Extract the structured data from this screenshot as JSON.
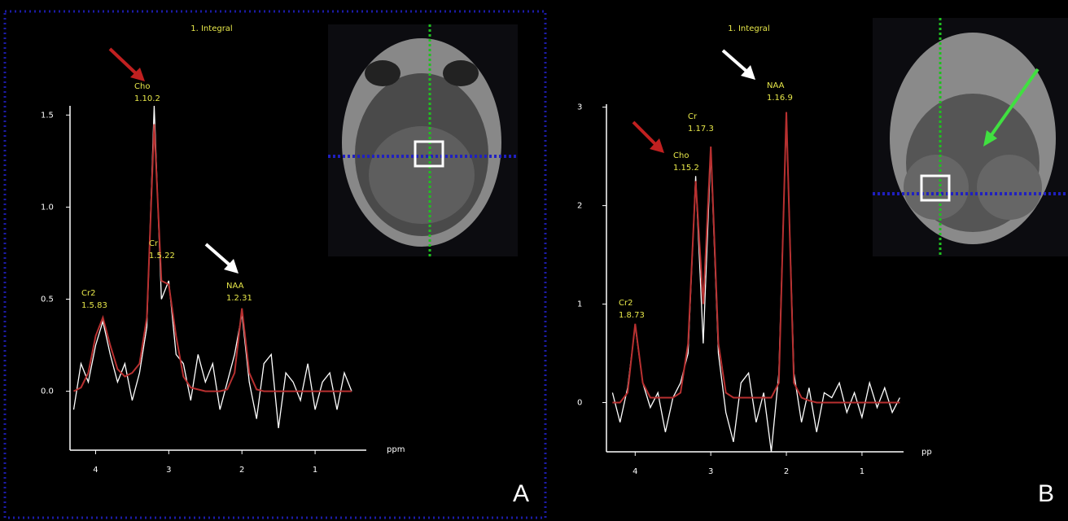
{
  "chart_data": [
    {
      "type": "line",
      "title": "1. Integral",
      "panel_label": "A",
      "x_label": "ppm",
      "x": [
        4.3,
        4.2,
        4.1,
        4.0,
        3.9,
        3.8,
        3.7,
        3.6,
        3.5,
        3.4,
        3.3,
        3.2,
        3.1,
        3.0,
        2.9,
        2.8,
        2.7,
        2.6,
        2.5,
        2.4,
        2.3,
        2.2,
        2.1,
        2.0,
        1.9,
        1.8,
        1.7,
        1.6,
        1.5,
        1.4,
        1.3,
        1.2,
        1.1,
        1.0,
        0.9,
        0.8,
        0.7,
        0.6,
        0.5
      ],
      "series": [
        {
          "color": "#ffffff",
          "values": [
            -0.1,
            0.15,
            0.05,
            0.25,
            0.38,
            0.2,
            0.05,
            0.15,
            -0.05,
            0.1,
            0.35,
            1.55,
            0.5,
            0.6,
            0.2,
            0.15,
            -0.05,
            0.2,
            0.05,
            0.15,
            -0.1,
            0.05,
            0.2,
            0.42,
            0.05,
            -0.15,
            0.15,
            0.2,
            -0.2,
            0.1,
            0.05,
            -0.05,
            0.15,
            -0.1,
            0.05,
            0.1,
            -0.1,
            0.1,
            0.0
          ]
        },
        {
          "color": "#b83030",
          "values": [
            0.0,
            0.02,
            0.1,
            0.3,
            0.4,
            0.25,
            0.12,
            0.08,
            0.1,
            0.15,
            0.4,
            1.45,
            0.6,
            0.58,
            0.3,
            0.08,
            0.02,
            0.01,
            0,
            0,
            0,
            0.01,
            0.1,
            0.45,
            0.1,
            0.01,
            0,
            0,
            0,
            0,
            0,
            0,
            0,
            0,
            0,
            0,
            0,
            0,
            0
          ]
        }
      ],
      "xlim": [
        4.35,
        0.3
      ],
      "xticks": [
        4,
        3,
        2,
        1
      ],
      "ylim": [
        -0.32,
        1.55
      ],
      "yticks": [
        {
          "value": 0,
          "label": "0.0"
        },
        0.5,
        {
          "value": 1,
          "label": "1.0"
        },
        1.5
      ],
      "annotations": [
        {
          "name": "Cr2",
          "value": "1.5.83"
        },
        {
          "name": "Cho",
          "value": "1.10.2"
        },
        {
          "name": "Cr",
          "value": "1.5.22"
        },
        {
          "name": "NAA",
          "value": "1.2.31"
        }
      ]
    },
    {
      "type": "line",
      "title": "1. Integral",
      "panel_label": "B",
      "x_label": "pp",
      "x": [
        4.3,
        4.2,
        4.1,
        4.0,
        3.9,
        3.8,
        3.7,
        3.6,
        3.5,
        3.4,
        3.3,
        3.2,
        3.1,
        3.0,
        2.9,
        2.8,
        2.7,
        2.6,
        2.5,
        2.4,
        2.3,
        2.2,
        2.1,
        2.0,
        1.9,
        1.8,
        1.7,
        1.6,
        1.5,
        1.4,
        1.3,
        1.2,
        1.1,
        1.0,
        0.9,
        0.8,
        0.7,
        0.6,
        0.5
      ],
      "series": [
        {
          "color": "#ffffff",
          "values": [
            0.1,
            -0.2,
            0.15,
            0.78,
            0.2,
            -0.05,
            0.1,
            -0.3,
            0.05,
            0.2,
            0.5,
            2.3,
            0.6,
            2.55,
            0.5,
            -0.1,
            -0.4,
            0.2,
            0.3,
            -0.2,
            0.1,
            -0.5,
            0.3,
            2.9,
            0.3,
            -0.2,
            0.15,
            -0.3,
            0.1,
            0.05,
            0.2,
            -0.1,
            0.1,
            -0.15,
            0.2,
            -0.05,
            0.15,
            -0.1,
            0.05
          ]
        },
        {
          "color": "#b83030",
          "values": [
            0.0,
            0.0,
            0.1,
            0.8,
            0.2,
            0.05,
            0.05,
            0.05,
            0.05,
            0.1,
            0.6,
            2.25,
            1.0,
            2.6,
            0.6,
            0.1,
            0.05,
            0.05,
            0.05,
            0.05,
            0.05,
            0.05,
            0.2,
            2.95,
            0.2,
            0.05,
            0.02,
            0,
            0,
            0,
            0,
            0,
            0,
            0,
            0,
            0,
            0,
            0,
            0
          ]
        }
      ],
      "xlim": [
        4.38,
        0.45
      ],
      "xticks": [
        4,
        3,
        2,
        1
      ],
      "ylim": [
        -0.5,
        3.03
      ],
      "yticks": [
        0,
        1,
        2,
        3
      ],
      "annotations": [
        {
          "name": "Cr2",
          "value": "1.8.73"
        },
        {
          "name": "Cho",
          "value": "1.15.2"
        },
        {
          "name": "Cr",
          "value": "1.17.3"
        },
        {
          "name": "NAA",
          "value": "1.16.9"
        }
      ]
    }
  ]
}
